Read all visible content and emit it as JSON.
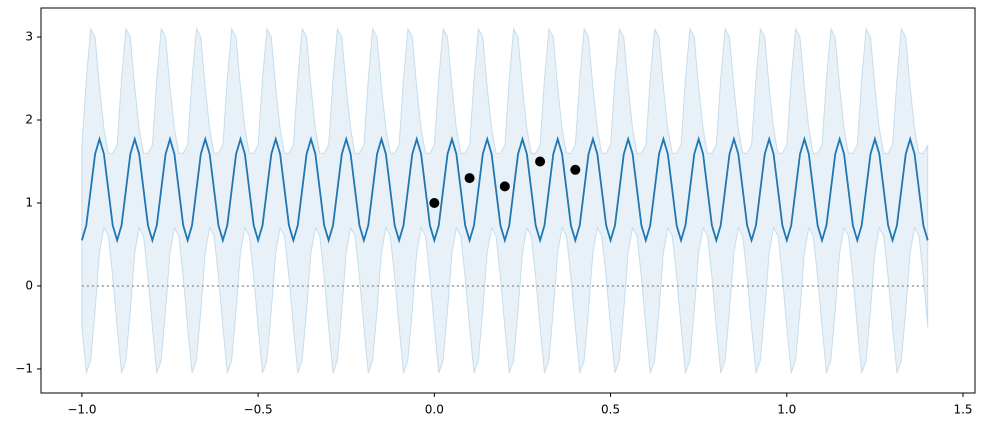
{
  "chart_data": {
    "type": "line",
    "x": [
      -1,
      -0.9875,
      -0.975,
      -0.9625,
      -0.95,
      -0.9375,
      -0.925,
      -0.9125,
      -0.9,
      -0.8875,
      -0.875,
      -0.8625,
      -0.85,
      -0.8375,
      -0.825,
      -0.8125,
      -0.8,
      -0.7875,
      -0.775,
      -0.7625,
      -0.75,
      -0.7375,
      -0.725,
      -0.7125,
      -0.7,
      -0.6875,
      -0.675,
      -0.6625,
      -0.65,
      -0.6375,
      -0.625,
      -0.6125,
      -0.6,
      -0.5875,
      -0.575,
      -0.5625,
      -0.55,
      -0.5375,
      -0.525,
      -0.5125,
      -0.5,
      -0.4875,
      -0.475,
      -0.4625,
      -0.45,
      -0.4375,
      -0.425,
      -0.4125,
      -0.4,
      -0.3875,
      -0.375,
      -0.3625,
      -0.35,
      -0.3375,
      -0.325,
      -0.3125,
      -0.3,
      -0.2875,
      -0.275,
      -0.2625,
      -0.25,
      -0.2375,
      -0.225,
      -0.2125,
      -0.2,
      -0.1875,
      -0.175,
      -0.1625,
      -0.15,
      -0.1375,
      -0.125,
      -0.1125,
      -0.1,
      -0.0875,
      -0.075,
      -0.0625,
      -0.05,
      -0.0375,
      -0.025,
      -0.0125,
      0,
      0.0125,
      0.025,
      0.0375,
      0.05,
      0.0625,
      0.075,
      0.0875,
      0.1,
      0.1125,
      0.125,
      0.1375,
      0.15,
      0.1625,
      0.175,
      0.1875,
      0.2,
      0.2125,
      0.225,
      0.2375,
      0.25,
      0.2625,
      0.275,
      0.2875,
      0.3,
      0.3125,
      0.325,
      0.3375,
      0.35,
      0.3625,
      0.375,
      0.3875,
      0.4,
      0.4125,
      0.425,
      0.4375,
      0.45,
      0.4625,
      0.475,
      0.4875,
      0.5,
      0.5125,
      0.525,
      0.5375,
      0.55,
      0.5625,
      0.575,
      0.5875,
      0.6,
      0.6125,
      0.625,
      0.6375,
      0.65,
      0.6625,
      0.675,
      0.6875,
      0.7,
      0.7125,
      0.725,
      0.7375,
      0.75,
      0.7625,
      0.775,
      0.7875,
      0.8,
      0.8125,
      0.825,
      0.8375,
      0.85,
      0.8625,
      0.875,
      0.8875,
      0.9,
      0.9125,
      0.925,
      0.9375,
      0.95,
      0.9625,
      0.975,
      0.9875,
      1,
      1.0125,
      1.025,
      1.0375,
      1.05,
      1.0625,
      1.075,
      1.0875,
      1.1,
      1.1125,
      1.125,
      1.1375,
      1.15,
      1.1625,
      1.175,
      1.1875,
      1.2,
      1.2125,
      1.225,
      1.2375,
      1.25,
      1.2625,
      1.275,
      1.2875,
      1.3,
      1.3125,
      1.325,
      1.3375,
      1.35,
      1.3625,
      1.375,
      1.3875,
      1.4
    ],
    "mean": {
      "color": "#1f77b4",
      "values": [
        0.55,
        0.73,
        1.16,
        1.59,
        1.77,
        1.59,
        1.16,
        0.73,
        0.55,
        0.73,
        1.16,
        1.59,
        1.77,
        1.59,
        1.16,
        0.73,
        0.55,
        0.73,
        1.16,
        1.59,
        1.77,
        1.59,
        1.16,
        0.73,
        0.55,
        0.73,
        1.16,
        1.59,
        1.77,
        1.59,
        1.16,
        0.73,
        0.55,
        0.73,
        1.16,
        1.59,
        1.77,
        1.59,
        1.16,
        0.73,
        0.55,
        0.73,
        1.16,
        1.59,
        1.77,
        1.59,
        1.16,
        0.73,
        0.55,
        0.73,
        1.16,
        1.59,
        1.77,
        1.59,
        1.16,
        0.73,
        0.55,
        0.73,
        1.16,
        1.59,
        1.77,
        1.59,
        1.16,
        0.73,
        0.55,
        0.73,
        1.16,
        1.59,
        1.77,
        1.59,
        1.16,
        0.73,
        0.55,
        0.73,
        1.16,
        1.59,
        1.77,
        1.59,
        1.16,
        0.73,
        0.55,
        0.73,
        1.16,
        1.59,
        1.77,
        1.59,
        1.16,
        0.73,
        0.55,
        0.73,
        1.16,
        1.59,
        1.77,
        1.59,
        1.16,
        0.73,
        0.55,
        0.73,
        1.16,
        1.59,
        1.77,
        1.59,
        1.16,
        0.73,
        0.55,
        0.73,
        1.16,
        1.59,
        1.77,
        1.59,
        1.16,
        0.73,
        0.55,
        0.73,
        1.16,
        1.59,
        1.77,
        1.59,
        1.16,
        0.73,
        0.55,
        0.73,
        1.16,
        1.59,
        1.77,
        1.59,
        1.16,
        0.73,
        0.55,
        0.73,
        1.16,
        1.59,
        1.77,
        1.59,
        1.16,
        0.73,
        0.55,
        0.73,
        1.16,
        1.59,
        1.77,
        1.59,
        1.16,
        0.73,
        0.55,
        0.73,
        1.16,
        1.59,
        1.77,
        1.59,
        1.16,
        0.73,
        0.55,
        0.73,
        1.16,
        1.59,
        1.77,
        1.59,
        1.16,
        0.73,
        0.55,
        0.73,
        1.16,
        1.59,
        1.77,
        1.59,
        1.16,
        0.73,
        0.55,
        0.73,
        1.16,
        1.59,
        1.77,
        1.59,
        1.16,
        0.73,
        0.55,
        0.73,
        1.16,
        1.59,
        1.77,
        1.59,
        1.16,
        0.73,
        0.55,
        0.73,
        1.16,
        1.59,
        1.77,
        1.59,
        1.16,
        0.73,
        0.55
      ]
    },
    "band": {
      "color": "#1f77b4",
      "upper": [
        1.7,
        2.5,
        3.1,
        3.0,
        2.4,
        1.9,
        1.6,
        1.6,
        1.7,
        2.5,
        3.1,
        3.0,
        2.4,
        1.9,
        1.6,
        1.6,
        1.7,
        2.5,
        3.1,
        3.0,
        2.4,
        1.9,
        1.6,
        1.6,
        1.7,
        2.5,
        3.1,
        3.0,
        2.4,
        1.9,
        1.6,
        1.6,
        1.7,
        2.5,
        3.1,
        3.0,
        2.4,
        1.9,
        1.6,
        1.6,
        1.7,
        2.5,
        3.1,
        3.0,
        2.4,
        1.9,
        1.6,
        1.6,
        1.7,
        2.5,
        3.1,
        3.0,
        2.4,
        1.9,
        1.6,
        1.6,
        1.7,
        2.5,
        3.1,
        3.0,
        2.4,
        1.9,
        1.6,
        1.6,
        1.7,
        2.5,
        3.1,
        3.0,
        2.4,
        1.9,
        1.6,
        1.6,
        1.7,
        2.5,
        3.1,
        3.0,
        2.4,
        1.9,
        1.6,
        1.6,
        1.7,
        2.5,
        3.1,
        3.0,
        2.4,
        1.9,
        1.6,
        1.6,
        1.7,
        2.5,
        3.1,
        3.0,
        2.4,
        1.9,
        1.6,
        1.6,
        1.7,
        2.5,
        3.1,
        3.0,
        2.4,
        1.9,
        1.6,
        1.6,
        1.7,
        2.5,
        3.1,
        3.0,
        2.4,
        1.9,
        1.6,
        1.6,
        1.7,
        2.5,
        3.1,
        3.0,
        2.4,
        1.9,
        1.6,
        1.6,
        1.7,
        2.5,
        3.1,
        3.0,
        2.4,
        1.9,
        1.6,
        1.6,
        1.7,
        2.5,
        3.1,
        3.0,
        2.4,
        1.9,
        1.6,
        1.6,
        1.7,
        2.5,
        3.1,
        3.0,
        2.4,
        1.9,
        1.6,
        1.6,
        1.7,
        2.5,
        3.1,
        3.0,
        2.4,
        1.9,
        1.6,
        1.6,
        1.7,
        2.5,
        3.1,
        3.0,
        2.4,
        1.9,
        1.6,
        1.6,
        1.7,
        2.5,
        3.1,
        3.0,
        2.4,
        1.9,
        1.6,
        1.6,
        1.7,
        2.5,
        3.1,
        3.0,
        2.4,
        1.9,
        1.6,
        1.6,
        1.7,
        2.5,
        3.1,
        3.0,
        2.4,
        1.9,
        1.6,
        1.6,
        1.7,
        2.5,
        3.1,
        3.0,
        2.4,
        1.9,
        1.6,
        1.6,
        1.7
      ],
      "lower": [
        -0.5,
        -1.05,
        -0.9,
        -0.3,
        0.4,
        0.7,
        0.6,
        0.1,
        -0.5,
        -1.05,
        -0.9,
        -0.3,
        0.4,
        0.7,
        0.6,
        0.1,
        -0.5,
        -1.05,
        -0.9,
        -0.3,
        0.4,
        0.7,
        0.6,
        0.1,
        -0.5,
        -1.05,
        -0.9,
        -0.3,
        0.4,
        0.7,
        0.6,
        0.1,
        -0.5,
        -1.05,
        -0.9,
        -0.3,
        0.4,
        0.7,
        0.6,
        0.1,
        -0.5,
        -1.05,
        -0.9,
        -0.3,
        0.4,
        0.7,
        0.6,
        0.1,
        -0.5,
        -1.05,
        -0.9,
        -0.3,
        0.4,
        0.7,
        0.6,
        0.1,
        -0.5,
        -1.05,
        -0.9,
        -0.3,
        0.4,
        0.7,
        0.6,
        0.1,
        -0.5,
        -1.05,
        -0.9,
        -0.3,
        0.4,
        0.7,
        0.6,
        0.1,
        -0.5,
        -1.05,
        -0.9,
        -0.3,
        0.4,
        0.7,
        0.6,
        0.1,
        -0.5,
        -1.05,
        -0.9,
        -0.3,
        0.4,
        0.7,
        0.6,
        0.1,
        -0.5,
        -1.05,
        -0.9,
        -0.3,
        0.4,
        0.7,
        0.6,
        0.1,
        -0.5,
        -1.05,
        -0.9,
        -0.3,
        0.4,
        0.7,
        0.6,
        0.1,
        -0.5,
        -1.05,
        -0.9,
        -0.3,
        0.4,
        0.7,
        0.6,
        0.1,
        -0.5,
        -1.05,
        -0.9,
        -0.3,
        0.4,
        0.7,
        0.6,
        0.1,
        -0.5,
        -1.05,
        -0.9,
        -0.3,
        0.4,
        0.7,
        0.6,
        0.1,
        -0.5,
        -1.05,
        -0.9,
        -0.3,
        0.4,
        0.7,
        0.6,
        0.1,
        -0.5,
        -1.05,
        -0.9,
        -0.3,
        0.4,
        0.7,
        0.6,
        0.1,
        -0.5,
        -1.05,
        -0.9,
        -0.3,
        0.4,
        0.7,
        0.6,
        0.1,
        -0.5,
        -1.05,
        -0.9,
        -0.3,
        0.4,
        0.7,
        0.6,
        0.1,
        -0.5,
        -1.05,
        -0.9,
        -0.3,
        0.4,
        0.7,
        0.6,
        0.1,
        -0.5,
        -1.05,
        -0.9,
        -0.3,
        0.4,
        0.7,
        0.6,
        0.1,
        -0.5,
        -1.05,
        -0.9,
        -0.3,
        0.4,
        0.7,
        0.6,
        0.1,
        -0.5,
        -1.05,
        -0.9,
        -0.3,
        0.4,
        0.7,
        0.6,
        0.1,
        -0.5
      ]
    },
    "points": {
      "color": "#000000",
      "x": [
        0,
        0.1,
        0.2,
        0.3,
        0.4
      ],
      "values": [
        1.0,
        1.3,
        1.2,
        1.5,
        1.4
      ]
    },
    "zero_line": 0,
    "xlim": [
      -1.116,
      1.534
    ],
    "ylim": [
      -1.29,
      3.35
    ],
    "xticks": [
      {
        "value": -1,
        "label": "−1.0"
      },
      {
        "value": -0.5,
        "label": "−0.5"
      },
      {
        "value": 0,
        "label": "0.0"
      },
      {
        "value": 0.5,
        "label": "0.5"
      },
      {
        "value": 1,
        "label": "1.0"
      },
      {
        "value": 1.5,
        "label": "1.5"
      }
    ],
    "yticks": [
      {
        "value": -1,
        "label": "−1"
      },
      0,
      1,
      2,
      3
    ],
    "grid": false
  }
}
